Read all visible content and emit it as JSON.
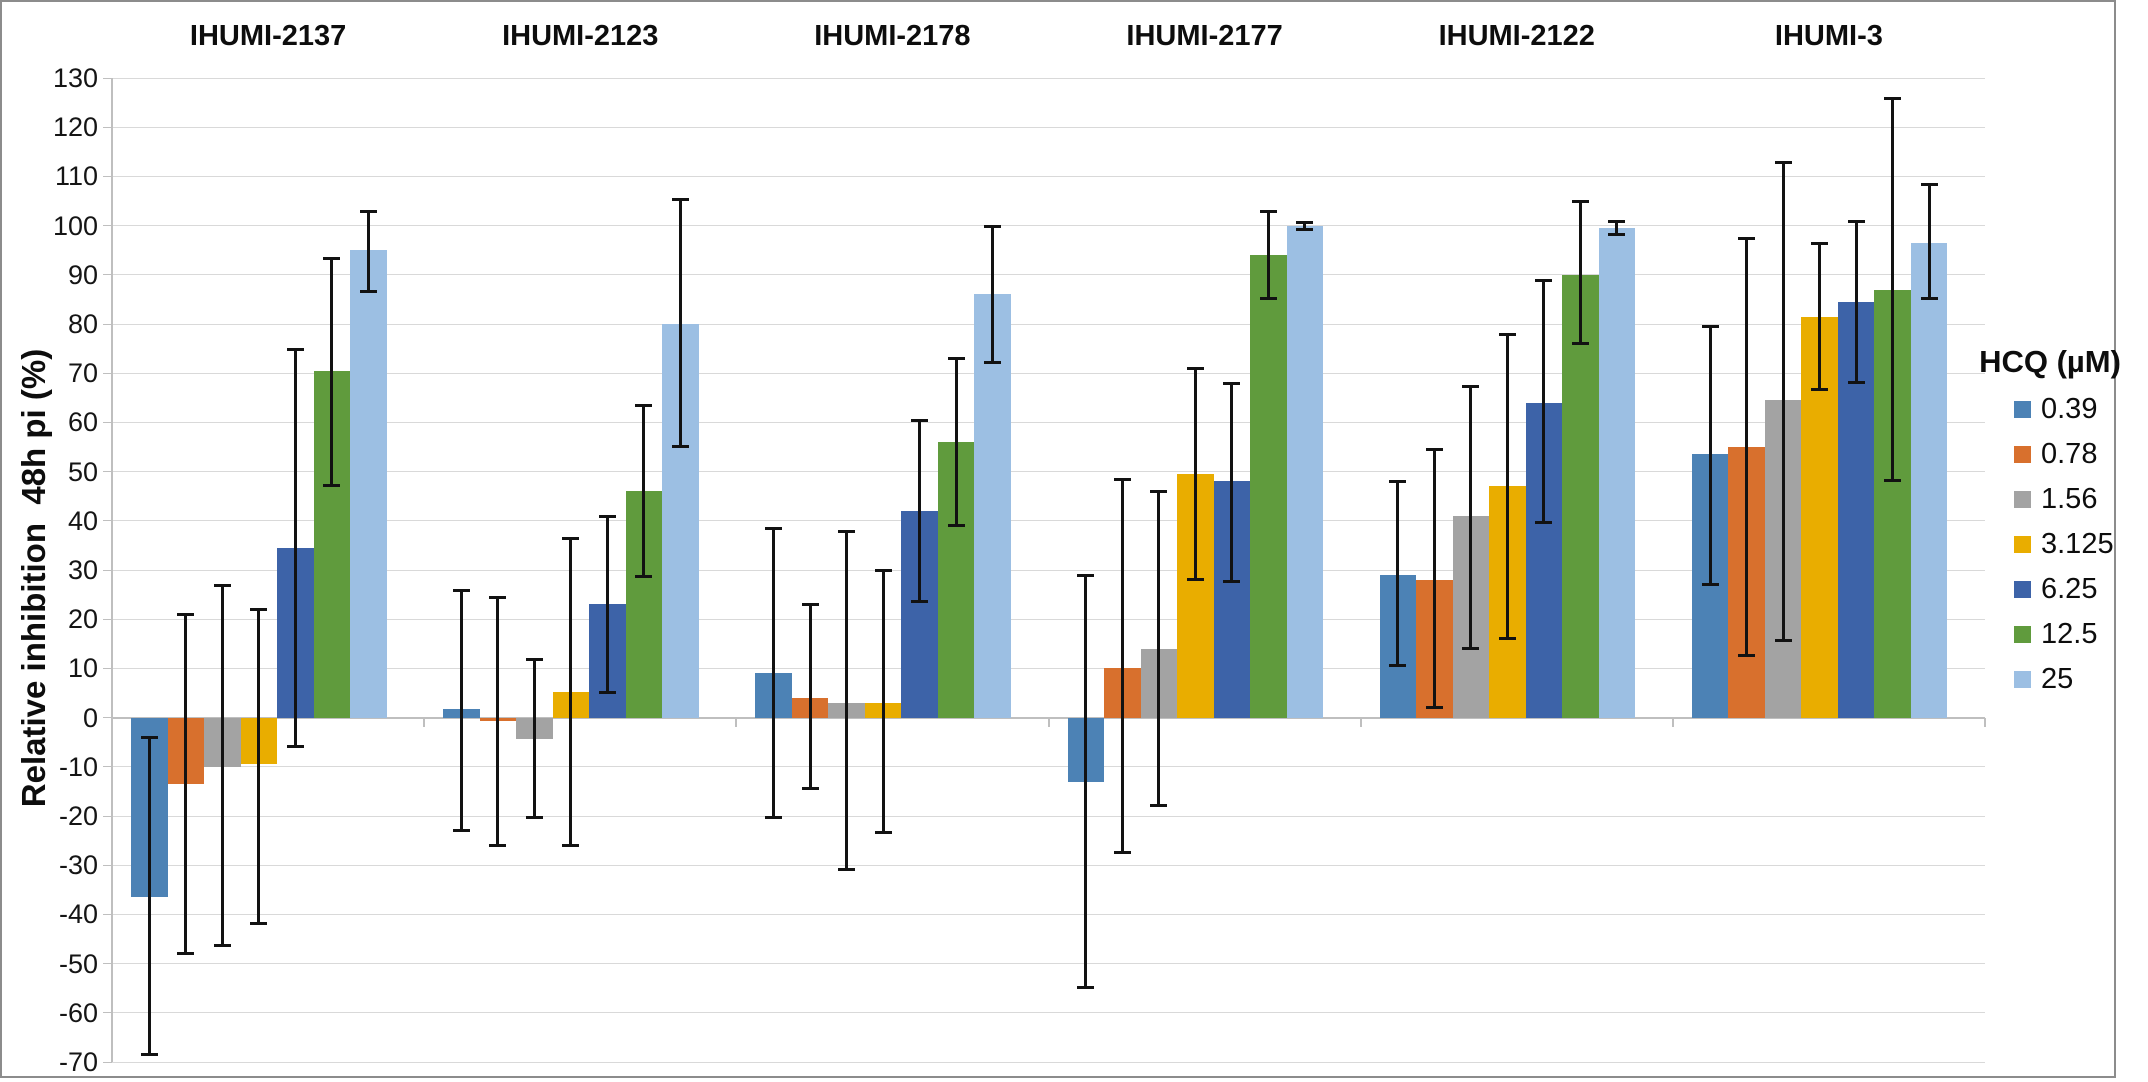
{
  "chart_data": {
    "type": "bar",
    "title": "",
    "xlabel": "",
    "ylabel": "Relative inhibition  48h pi (%)",
    "ylim": [
      -70,
      130
    ],
    "ytick_step": 10,
    "grid": true,
    "error_bars": true,
    "legend_title": "HCQ (µM)",
    "legend_position": "right",
    "categories": [
      "IHUMI-2137",
      "IHUMI-2123",
      "IHUMI-2178",
      "IHUMI-2177",
      "IHUMI-2122",
      "IHUMI-3"
    ],
    "series": [
      {
        "name": "0.39",
        "color": "#4c82b5",
        "values": [
          -36.5,
          1.7,
          9,
          -13,
          29,
          53.5
        ],
        "err_lo": [
          -68.5,
          -23,
          -20.5,
          -55,
          10.5,
          27
        ],
        "err_hi": [
          -4,
          26,
          38.5,
          29,
          48,
          79.5
        ]
      },
      {
        "name": "0.78",
        "color": "#d8702d",
        "values": [
          -13.5,
          -0.6,
          4,
          10,
          28,
          55
        ],
        "err_lo": [
          -48,
          -26,
          -14.5,
          -27.5,
          2,
          12.5
        ],
        "err_hi": [
          21,
          24.5,
          23,
          48.5,
          54.5,
          97.5
        ]
      },
      {
        "name": "1.56",
        "color": "#a3a3a3",
        "values": [
          -10,
          -4.3,
          3,
          14,
          41,
          64.5
        ],
        "err_lo": [
          -46.5,
          -20.5,
          -31,
          -18,
          14,
          15.5
        ],
        "err_hi": [
          27,
          12,
          38,
          46,
          67.5,
          113
        ]
      },
      {
        "name": "3.125",
        "color": "#e9ad00",
        "values": [
          -9.5,
          5.2,
          3,
          49.5,
          47,
          81.5
        ],
        "err_lo": [
          -42,
          -26,
          -23.5,
          28,
          16,
          66.5
        ],
        "err_hi": [
          22,
          36.5,
          30,
          71,
          78,
          96.5
        ]
      },
      {
        "name": "6.25",
        "color": "#3d63a8",
        "values": [
          34.5,
          23,
          42,
          48,
          64,
          84.5
        ],
        "err_lo": [
          -6,
          5,
          23.5,
          27.5,
          39.5,
          68
        ],
        "err_hi": [
          75,
          41,
          60.5,
          68,
          89,
          101
        ]
      },
      {
        "name": "12.5",
        "color": "#609b3d",
        "values": [
          70.5,
          46,
          56,
          94,
          90,
          87
        ],
        "err_lo": [
          47,
          28.5,
          39,
          85,
          76,
          48
        ],
        "err_hi": [
          93.5,
          63.5,
          73,
          103,
          105,
          126
        ]
      },
      {
        "name": "25",
        "color": "#9cbfe3",
        "values": [
          95,
          80,
          86,
          100,
          99.5,
          96.5
        ],
        "err_lo": [
          86.5,
          55,
          72,
          99.2,
          98,
          85
        ],
        "err_hi": [
          103,
          105.5,
          100,
          100.7,
          101,
          108.5
        ]
      }
    ]
  }
}
